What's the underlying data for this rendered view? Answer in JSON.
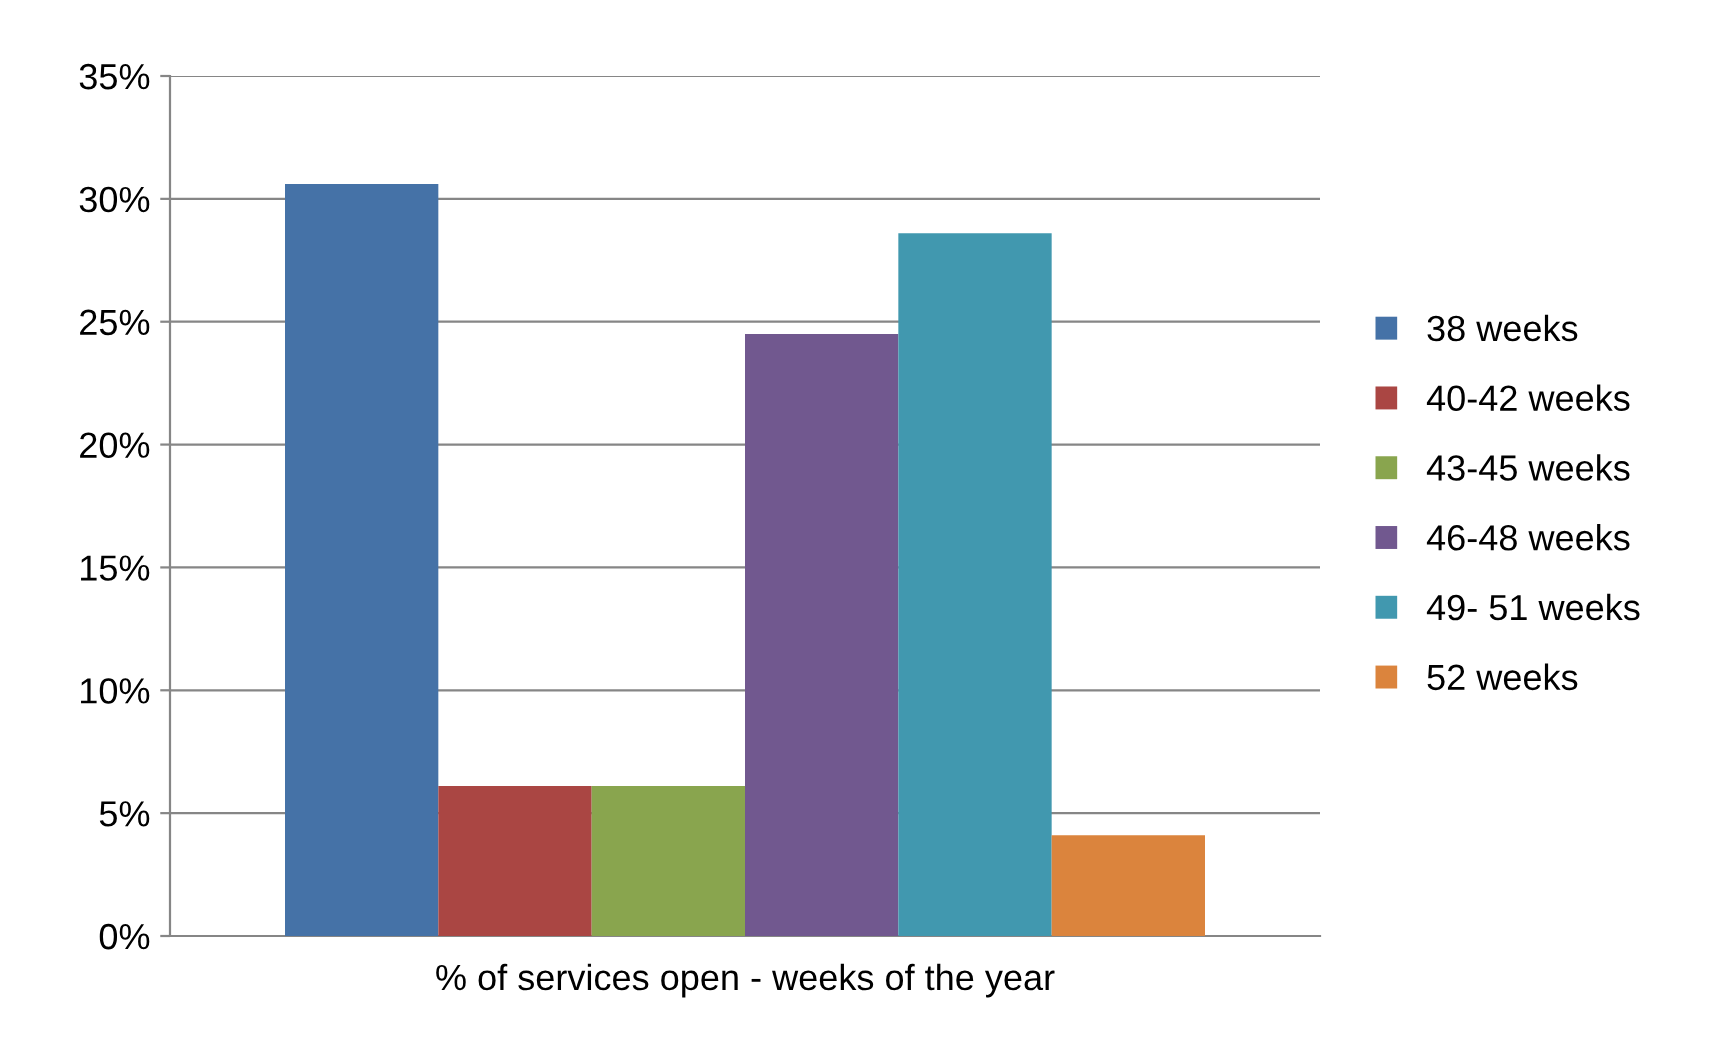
{
  "chart_data": {
    "type": "bar",
    "categories": [
      "% of services open - weeks of the year"
    ],
    "series": [
      {
        "name": "38 weeks",
        "color": "#4572a7",
        "values": [
          30.6
        ]
      },
      {
        "name": "40-42 weeks",
        "color": "#aa4643",
        "values": [
          6.1
        ]
      },
      {
        "name": "43-45 weeks",
        "color": "#89a54e",
        "values": [
          6.1
        ]
      },
      {
        "name": "46-48 weeks",
        "color": "#71588f",
        "values": [
          24.5
        ]
      },
      {
        "name": "49- 51 weeks",
        "color": "#4198af",
        "values": [
          28.6
        ]
      },
      {
        "name": "52 weeks",
        "color": "#db843d",
        "values": [
          4.1
        ]
      }
    ],
    "ylim": [
      0,
      35
    ],
    "yticks": [
      {
        "value": 0,
        "label": "0%"
      },
      {
        "value": 5,
        "label": "5%"
      },
      {
        "value": 10,
        "label": "10%"
      },
      {
        "value": 15,
        "label": "15%"
      },
      {
        "value": 20,
        "label": "20%"
      },
      {
        "value": 25,
        "label": "25%"
      },
      {
        "value": 30,
        "label": "30%"
      },
      {
        "value": 35,
        "label": "35%"
      }
    ],
    "grid": "y",
    "legend": "right"
  }
}
